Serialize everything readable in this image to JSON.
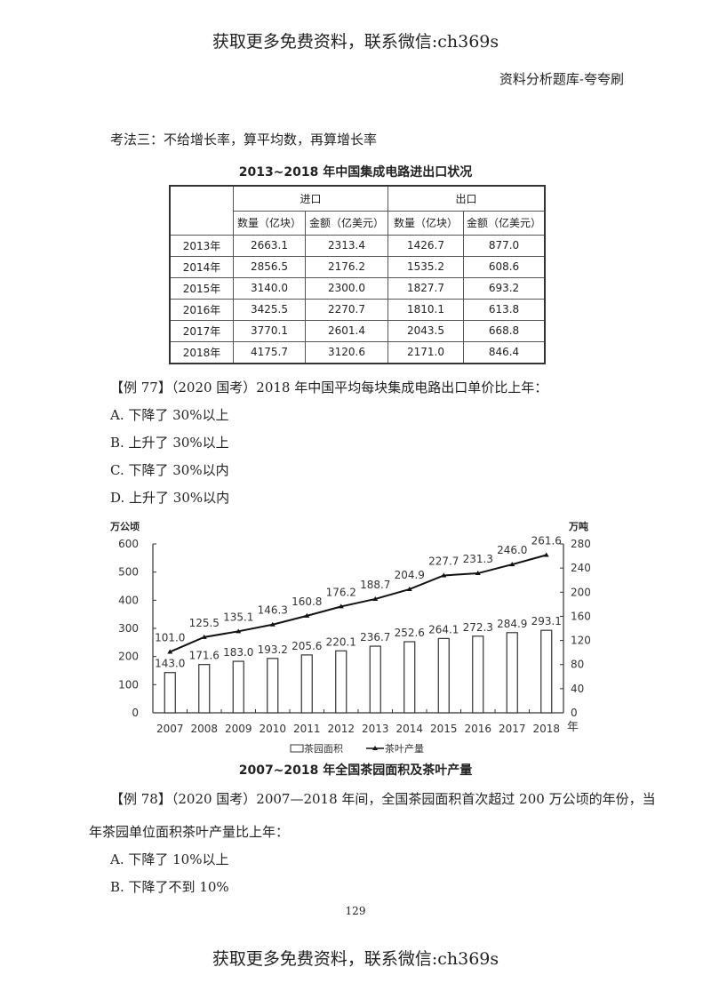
{
  "watermark": "获取更多免费资料，联系微信:ch369s",
  "header_right": "资料分析题库-夸夸刷",
  "section_heading": "考法三：不给增长率，算平均数，再算增长率",
  "table": {
    "title": "2013~2018 年中国集成电路进出口状况",
    "group_headers": [
      "进口",
      "出口"
    ],
    "sub_headers": [
      "数量（亿块）",
      "金额（亿美元）",
      "数量（亿块）",
      "金额（亿美元）"
    ],
    "rows": [
      {
        "year": "2013年",
        "cells": [
          "2663.1",
          "2313.4",
          "1426.7",
          "877.0"
        ]
      },
      {
        "year": "2014年",
        "cells": [
          "2856.5",
          "2176.2",
          "1535.2",
          "608.6"
        ]
      },
      {
        "year": "2015年",
        "cells": [
          "3140.0",
          "2300.0",
          "1827.7",
          "693.2"
        ]
      },
      {
        "year": "2016年",
        "cells": [
          "3425.5",
          "2270.7",
          "1810.1",
          "613.8"
        ]
      },
      {
        "year": "2017年",
        "cells": [
          "3770.1",
          "2601.4",
          "2043.5",
          "668.8"
        ]
      },
      {
        "year": "2018年",
        "cells": [
          "4175.7",
          "3120.6",
          "2171.0",
          "846.4"
        ]
      }
    ]
  },
  "q77": {
    "stem": "【例 77】（2020 国考）2018 年中国平均每块集成电路出口单价比上年：",
    "options": [
      "A. 下降了 30%以上",
      "B. 上升了 30%以上",
      "C. 下降了 30%以内",
      "D. 上升了 30%以内"
    ]
  },
  "chart_data": {
    "type": "bar+line",
    "title": "2007~2018 年全国茶园面积及茶叶产量",
    "categories": [
      "2007",
      "2008",
      "2009",
      "2010",
      "2011",
      "2012",
      "2013",
      "2014",
      "2015",
      "2016",
      "2017",
      "2018"
    ],
    "x_unit": "年",
    "left_axis": {
      "label": "万公顷",
      "ticks": [
        "0",
        "100",
        "200",
        "300",
        "400",
        "500",
        "600"
      ],
      "range": [
        0,
        600
      ]
    },
    "right_axis": {
      "label": "万吨",
      "ticks": [
        "0",
        "40",
        "80",
        "120",
        "160",
        "200",
        "240",
        "280"
      ],
      "range": [
        0,
        280
      ]
    },
    "series": [
      {
        "name": "茶园面积",
        "type": "bar",
        "axis": "left",
        "values": [
          143.0,
          171.6,
          183.0,
          193.2,
          205.6,
          220.1,
          236.7,
          252.6,
          264.1,
          272.3,
          284.9,
          293.1
        ]
      },
      {
        "name": "茶叶产量",
        "type": "line",
        "axis": "right",
        "values": [
          101.0,
          125.5,
          135.1,
          146.3,
          160.8,
          176.2,
          188.7,
          204.9,
          227.7,
          231.3,
          246.0,
          261.6
        ]
      }
    ],
    "legend": [
      "茶园面积",
      "茶叶产量"
    ],
    "legend_position": "bottom",
    "grid": false
  },
  "q78": {
    "stem_line1": "【例 78】（2020 国考）2007—2018 年间，全国茶园面积首次超过 200 万公顷的年份，当",
    "stem_line2": "年茶园单位面积茶叶产量比上年：",
    "options": [
      "A. 下降了 10%以上",
      "B. 下降了不到 10%"
    ]
  },
  "page_number": "129"
}
